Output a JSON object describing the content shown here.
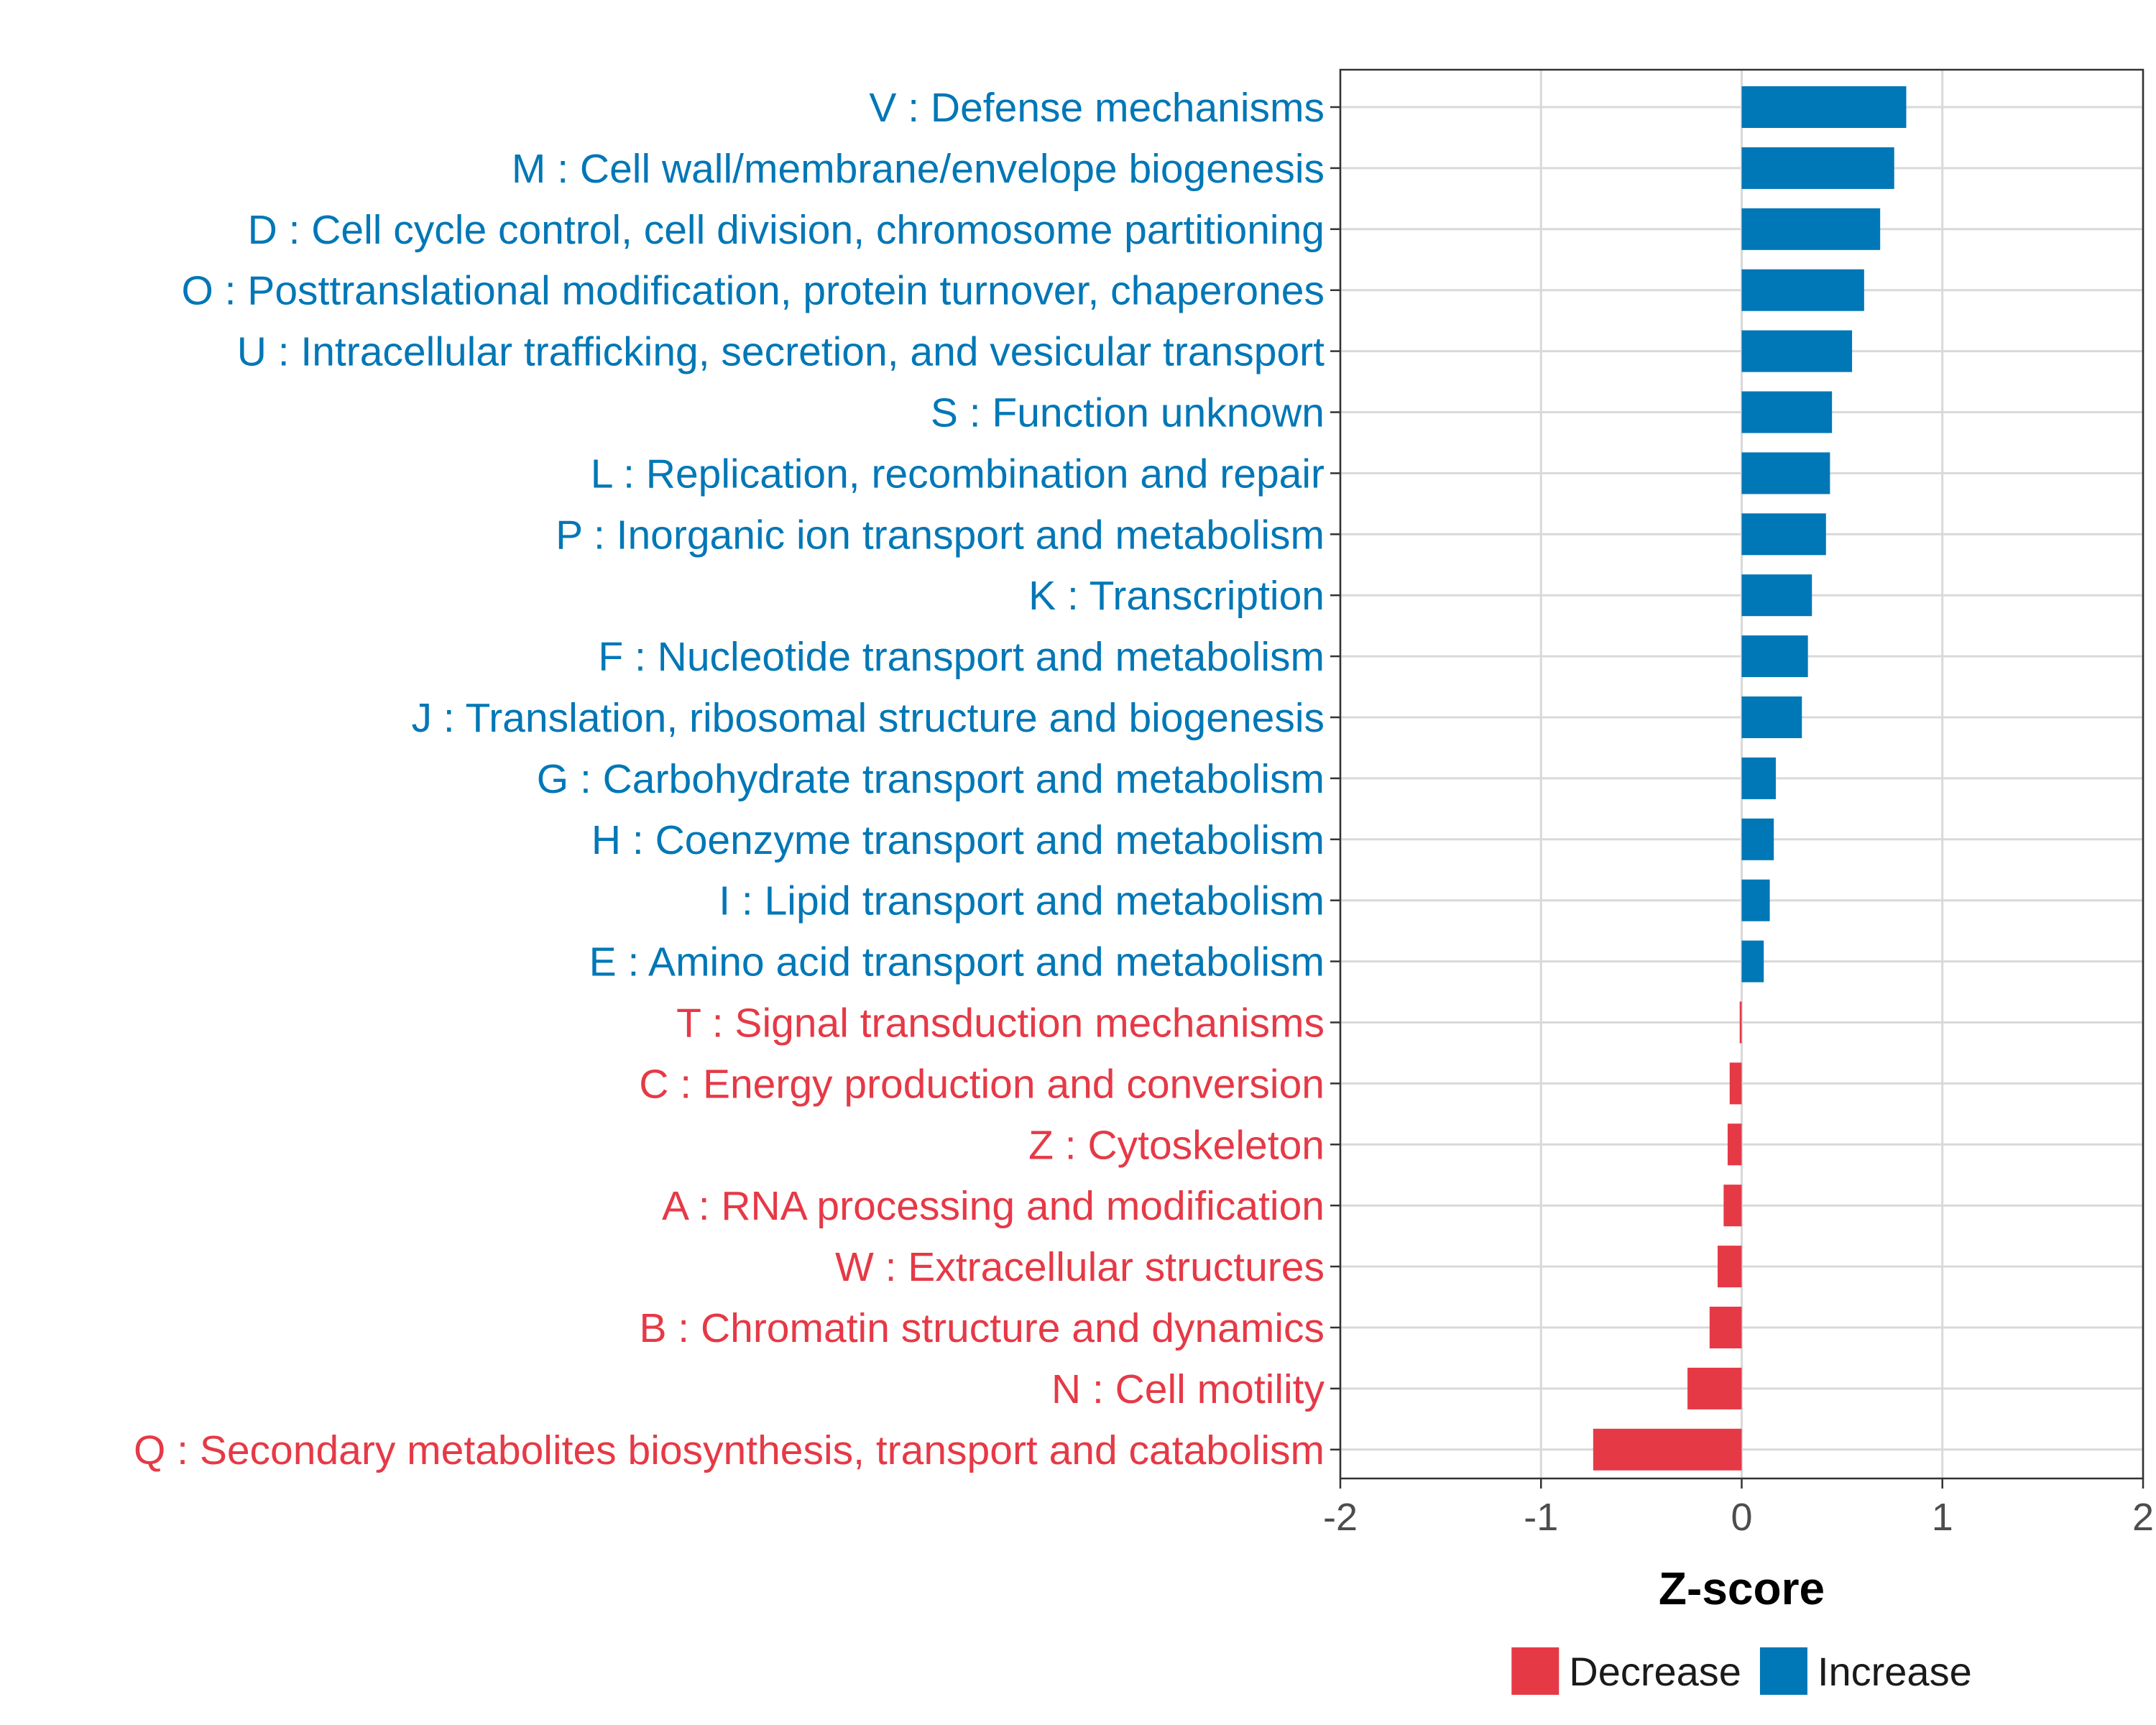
{
  "chart_data": {
    "type": "bar",
    "orientation": "horizontal",
    "title": "",
    "xlabel": "Z-score",
    "ylabel": "",
    "xlim": [
      -2,
      2
    ],
    "xticks": [
      "-2",
      "-1",
      "0",
      "1",
      "2"
    ],
    "grid": true,
    "legend_position": "bottom",
    "colors": {
      "Decrease": "#e63946",
      "Increase": "#0077b6"
    },
    "legend": [
      {
        "name": "Decrease",
        "color": "#e63946"
      },
      {
        "name": "Increase",
        "color": "#0077b6"
      }
    ],
    "categories": [
      {
        "label": "V : Defense mechanisms",
        "value": 0.82,
        "direction": "Increase"
      },
      {
        "label": "M : Cell wall/membrane/envelope biogenesis",
        "value": 0.76,
        "direction": "Increase"
      },
      {
        "label": "D : Cell cycle control, cell division, chromosome partitioning",
        "value": 0.69,
        "direction": "Increase"
      },
      {
        "label": "O : Posttranslational modification, protein turnover, chaperones",
        "value": 0.61,
        "direction": "Increase"
      },
      {
        "label": "U : Intracellular trafficking, secretion, and vesicular transport",
        "value": 0.55,
        "direction": "Increase"
      },
      {
        "label": "S : Function unknown",
        "value": 0.45,
        "direction": "Increase"
      },
      {
        "label": "L : Replication, recombination and repair",
        "value": 0.44,
        "direction": "Increase"
      },
      {
        "label": "P : Inorganic ion transport and metabolism",
        "value": 0.42,
        "direction": "Increase"
      },
      {
        "label": "K : Transcription",
        "value": 0.35,
        "direction": "Increase"
      },
      {
        "label": "F : Nucleotide transport and metabolism",
        "value": 0.33,
        "direction": "Increase"
      },
      {
        "label": "J : Translation, ribosomal structure and biogenesis",
        "value": 0.3,
        "direction": "Increase"
      },
      {
        "label": "G : Carbohydrate transport and metabolism",
        "value": 0.17,
        "direction": "Increase"
      },
      {
        "label": "H : Coenzyme transport and metabolism",
        "value": 0.16,
        "direction": "Increase"
      },
      {
        "label": "I : Lipid transport and metabolism",
        "value": 0.14,
        "direction": "Increase"
      },
      {
        "label": "E : Amino acid transport and metabolism",
        "value": 0.11,
        "direction": "Increase"
      },
      {
        "label": "T : Signal transduction mechanisms",
        "value": -0.01,
        "direction": "Decrease"
      },
      {
        "label": "C : Energy production and conversion",
        "value": -0.06,
        "direction": "Decrease"
      },
      {
        "label": "Z : Cytoskeleton",
        "value": -0.07,
        "direction": "Decrease"
      },
      {
        "label": "A : RNA processing and modification",
        "value": -0.09,
        "direction": "Decrease"
      },
      {
        "label": "W : Extracellular structures",
        "value": -0.12,
        "direction": "Decrease"
      },
      {
        "label": "B : Chromatin structure and dynamics",
        "value": -0.16,
        "direction": "Decrease"
      },
      {
        "label": "N : Cell motility",
        "value": -0.27,
        "direction": "Decrease"
      },
      {
        "label": "Q : Secondary metabolites biosynthesis, transport and catabolism",
        "value": -0.74,
        "direction": "Decrease"
      }
    ]
  }
}
